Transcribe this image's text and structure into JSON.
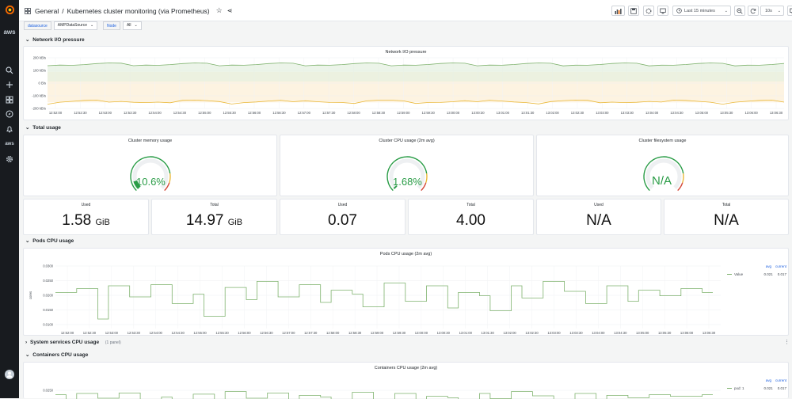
{
  "header": {
    "breadcrumb_root": "General",
    "breadcrumb_sep": "/",
    "title": "Kubernetes cluster monitoring (via Prometheus)",
    "time_range": "Last 15 minutes",
    "refresh": "10s"
  },
  "sidebar": {
    "aws_label": "aws",
    "icons": [
      "grafana-logo-icon",
      "aws-icon",
      "search-icon",
      "plus-icon",
      "dashboards-icon",
      "explore-icon",
      "alerting-icon",
      "aws-icon",
      "gear-icon",
      "user-avatar-icon"
    ]
  },
  "variables": {
    "datasource_label": "datasource",
    "datasource_value": "AMPDataSource",
    "node_label": "Node",
    "node_value": "All"
  },
  "rows": {
    "network": "Network I/O pressure",
    "total": "Total usage",
    "pods": "Pods CPU usage",
    "system": "System services CPU usage",
    "system_count": "(1 panel)",
    "containers": "Containers CPU usage"
  },
  "network_panel": {
    "title": "Network I/O pressure",
    "y_ticks": [
      "200 kB/s",
      "100 kB/s",
      "0 B/s",
      "-100 kB/s",
      "-200 kB/s"
    ],
    "x_ticks": [
      "12:52:00",
      "12:52:30",
      "12:53:00",
      "12:53:30",
      "12:54:00",
      "12:54:30",
      "12:55:00",
      "12:55:30",
      "12:56:00",
      "12:56:30",
      "12:57:00",
      "12:57:30",
      "12:58:00",
      "12:58:30",
      "12:59:00",
      "12:59:30",
      "13:00:00",
      "13:00:30",
      "13:01:00",
      "13:01:30",
      "13:02:00",
      "13:02:30",
      "13:03:00",
      "13:03:30",
      "13:04:00",
      "13:04:30",
      "13:05:00",
      "13:05:30",
      "13:06:00",
      "13:06:30"
    ]
  },
  "gauges": [
    {
      "title": "Cluster memory usage",
      "value": "10.6%",
      "fraction": 0.106
    },
    {
      "title": "Cluster CPU usage (2m avg)",
      "value": "1.68%",
      "fraction": 0.0168
    },
    {
      "title": "Cluster filesystem usage",
      "value": "N/A",
      "fraction": 0
    }
  ],
  "stats": [
    {
      "label": "Used",
      "value": "1.58",
      "unit": "GiB"
    },
    {
      "label": "Total",
      "value": "14.97",
      "unit": "GiB"
    },
    {
      "label": "Used",
      "value": "0.07",
      "unit": ""
    },
    {
      "label": "Total",
      "value": "4.00",
      "unit": ""
    },
    {
      "label": "Used",
      "value": "N/A",
      "unit": ""
    },
    {
      "label": "Total",
      "value": "N/A",
      "unit": ""
    }
  ],
  "pods_panel": {
    "title": "Pods CPU usage (2m avg)",
    "y_axis_label": "cores",
    "y_ticks": [
      "0.0300",
      "0.0250",
      "0.0200",
      "0.0150",
      "0.0100"
    ],
    "x_ticks": [
      "12:52:00",
      "12:52:30",
      "12:53:00",
      "12:53:30",
      "12:54:00",
      "12:54:30",
      "12:55:00",
      "12:55:30",
      "12:56:00",
      "12:56:30",
      "12:57:00",
      "12:57:30",
      "12:58:00",
      "12:58:30",
      "12:59:00",
      "12:59:30",
      "13:00:00",
      "13:00:30",
      "13:01:00",
      "13:01:30",
      "13:02:00",
      "13:02:30",
      "13:03:00",
      "13:03:30",
      "13:04:00",
      "13:04:30",
      "13:05:00",
      "13:05:30",
      "13:06:00",
      "13:06:30"
    ],
    "legend": {
      "avg_header": "avg",
      "current_header": "current",
      "name": "Value",
      "avg": "0.021",
      "current": "0.017"
    }
  },
  "containers_panel": {
    "title": "Containers CPU usage (2m avg)",
    "y_ticks": [
      "0.0250"
    ],
    "legend": {
      "avg_header": "avg",
      "current_header": "current",
      "name": "pod: 1",
      "avg": "0.021",
      "current": "0.017"
    }
  },
  "colors": {
    "green": "#299c46",
    "line_green": "#7eb26d",
    "orange": "#eab839",
    "red": "#d44a3a",
    "link_blue": "#1f62e0"
  }
}
